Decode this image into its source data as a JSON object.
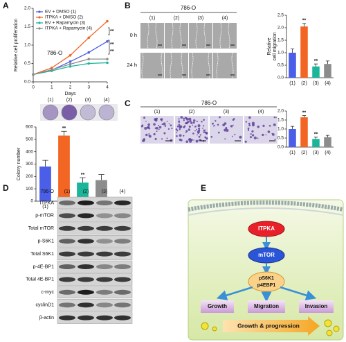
{
  "panel_labels": [
    "A",
    "B",
    "C",
    "D",
    "E"
  ],
  "chart_data": [
    {
      "type": "line",
      "annotation": "786-O",
      "xlabel": "Days",
      "ylabel": "Relative cell proliferation",
      "x": [
        0,
        1,
        2,
        3,
        4
      ],
      "xlim": [
        0,
        4
      ],
      "xticks": [
        0,
        1,
        2,
        3,
        4
      ],
      "ylim": [
        0,
        2
      ],
      "yticks": [
        {
          "value": 0,
          "label": "0.0"
        },
        {
          "value": 0.5,
          "label": "0.5"
        },
        {
          "value": 1,
          "label": "1.0"
        },
        {
          "value": 1.5,
          "label": "1.5"
        },
        {
          "value": 2,
          "label": "2.0"
        }
      ],
      "series": [
        {
          "name": "EV + DMSO (1)",
          "color": "#4a5ee8",
          "values": [
            0.2,
            0.32,
            0.55,
            0.8,
            1.1
          ]
        },
        {
          "name": "ITPKA + DMSO (2)",
          "color": "#f26522",
          "values": [
            0.2,
            0.38,
            0.72,
            1.2,
            1.65
          ]
        },
        {
          "name": "EV + Rapamycin (3)",
          "color": "#1bb69a",
          "values": [
            0.2,
            0.3,
            0.42,
            0.5,
            0.52
          ]
        },
        {
          "name": "ITPKA + Rapamycin (4)",
          "color": "#8c8c8c",
          "values": [
            0.2,
            0.33,
            0.48,
            0.62,
            0.62
          ]
        }
      ],
      "significance": [
        "**",
        "**",
        "**"
      ]
    },
    {
      "type": "bar",
      "ylabel": "Colony number",
      "categories": [
        "(1)",
        "(2)",
        "(3)",
        "(4)"
      ],
      "values": [
        280,
        530,
        150,
        170
      ],
      "errors": [
        50,
        35,
        40,
        45
      ],
      "colors": [
        "#4a5ee8",
        "#f26522",
        "#1bb69a",
        "#8c8c8c"
      ],
      "ylim": [
        0,
        600
      ],
      "yticks": [
        0,
        100,
        200,
        300,
        400,
        500,
        600
      ],
      "significance": [
        null,
        "**",
        "**",
        null
      ]
    },
    {
      "type": "bar",
      "ylabel": [
        "Relative",
        "cell migration"
      ],
      "categories": [
        "(1)",
        "(2)",
        "(3)",
        "(4)"
      ],
      "values": [
        1.0,
        2.05,
        0.45,
        0.55
      ],
      "errors": [
        0.15,
        0.12,
        0.1,
        0.12
      ],
      "colors": [
        "#4a5ee8",
        "#f26522",
        "#1bb69a",
        "#8c8c8c"
      ],
      "ylim": [
        0,
        2.5
      ],
      "yticks": [
        {
          "value": 0,
          "label": "0.0"
        },
        {
          "value": 0.5,
          "label": "0.5"
        },
        {
          "value": 1,
          "label": "1.0"
        },
        {
          "value": 1.5,
          "label": "1.5"
        },
        {
          "value": 2,
          "label": "2.0"
        },
        {
          "value": 2.5,
          "label": "2.5"
        }
      ],
      "significance": [
        null,
        "**",
        "**",
        null
      ]
    },
    {
      "type": "bar",
      "ylabel": [
        "Relative",
        "cell invasion"
      ],
      "categories": [
        "(1)",
        "(2)",
        "(3)",
        "(4)"
      ],
      "values": [
        1.0,
        1.65,
        0.45,
        0.55
      ],
      "errors": [
        0.15,
        0.1,
        0.1,
        0.1
      ],
      "colors": [
        "#4a5ee8",
        "#f26522",
        "#1bb69a",
        "#8c8c8c"
      ],
      "ylim": [
        0,
        2
      ],
      "yticks": [
        {
          "value": 0,
          "label": "0.0"
        },
        {
          "value": 0.5,
          "label": "0.5"
        },
        {
          "value": 1,
          "label": "1.0"
        },
        {
          "value": 1.5,
          "label": "1.5"
        },
        {
          "value": 2,
          "label": "2.0"
        }
      ],
      "significance": [
        null,
        "**",
        "**",
        null
      ]
    }
  ],
  "colony_plates": {
    "labels": [
      "(1)",
      "(2)",
      "(3)",
      "(4)"
    ]
  },
  "migration_assay": {
    "cell_line": "786-O",
    "columns": [
      "(1)",
      "(2)",
      "(3)",
      "(4)"
    ],
    "rows": [
      "0 h",
      "24 h"
    ]
  },
  "invasion_assay": {
    "cell_line": "786-O",
    "columns": [
      "(1)",
      "(2)",
      "(3)",
      "(4)"
    ]
  },
  "western_blot": {
    "cell_line": "786-O",
    "columns": [
      "(1)",
      "(2)",
      "(3)",
      "(4)"
    ],
    "rows": [
      "ITPKA",
      "p-mTOR",
      "Total mTOR",
      "p-S6K1",
      "Total S6K1",
      "p-4E-BP1",
      "Total 4E-BP1",
      "c-myc",
      "cyclinD1",
      "β-actin"
    ]
  },
  "diagram": {
    "nodes": [
      "ITPKA",
      "mTOR",
      "pS6K1",
      "p4EBP1"
    ],
    "outcomes": [
      "Growth",
      "Migration",
      "Invasion"
    ],
    "result": "Growth & progression"
  }
}
